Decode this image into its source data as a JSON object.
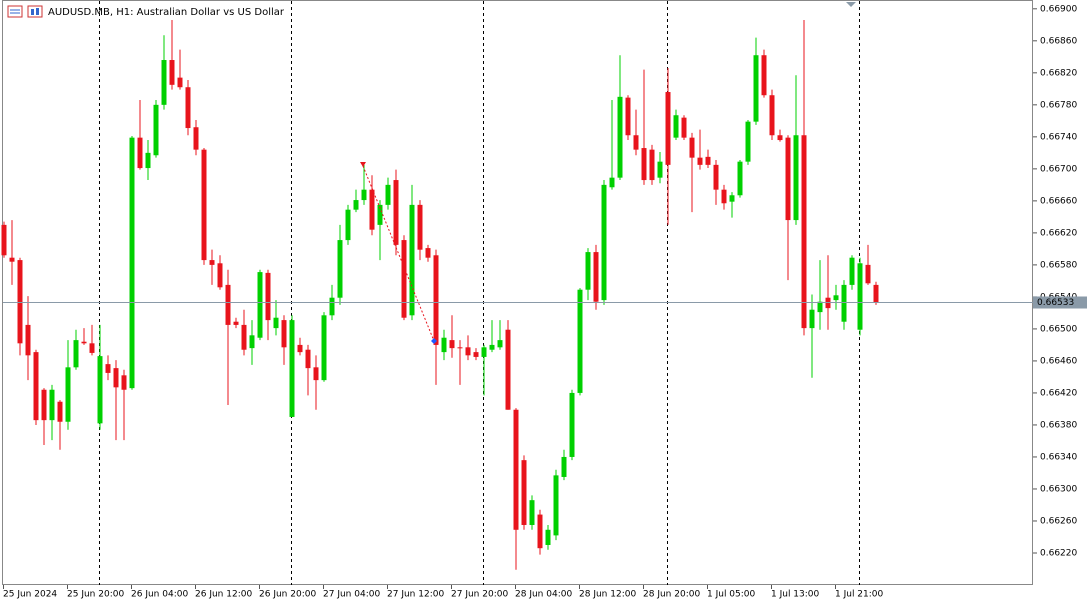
{
  "chart_data": {
    "type": "candlestick",
    "title": "AUDUSD.MB, H1:  Australian Dollar vs US Dollar",
    "bull_color": "#00d000",
    "bear_color": "#e8141c",
    "categories": [
      "25 Jun 2024",
      null,
      null,
      null,
      null,
      null,
      null,
      null,
      "25 Jun 20:00",
      null,
      null,
      null,
      null,
      null,
      null,
      null,
      "26 Jun 04:00",
      null,
      null,
      null,
      null,
      null,
      null,
      null,
      "26 Jun 12:00",
      null,
      null,
      null,
      null,
      null,
      null,
      null,
      "26 Jun 20:00",
      null,
      null,
      null,
      null,
      null,
      null,
      null,
      "27 Jun 04:00",
      null,
      null,
      null,
      null,
      null,
      null,
      null,
      "27 Jun 12:00",
      null,
      null,
      null,
      null,
      null,
      null,
      null,
      "27 Jun 20:00",
      null,
      null,
      null,
      null,
      null,
      null,
      null,
      "28 Jun 04:00",
      null,
      null,
      null,
      null,
      null,
      null,
      null,
      "28 Jun 12:00",
      null,
      null,
      null,
      null,
      null,
      null,
      null,
      "28 Jun 20:00",
      null,
      null,
      null,
      null,
      null,
      null,
      null,
      "1 Jul 05:00",
      null,
      null,
      null,
      null,
      null,
      null,
      null,
      "1 Jul 13:00",
      null,
      null,
      null,
      null,
      null,
      null,
      null,
      "1 Jul 21:00",
      null,
      null,
      null,
      null,
      null
    ],
    "open": [
      0.6663,
      0.66589,
      0.66586,
      0.66505,
      0.66471,
      0.66424,
      0.66386,
      0.66409,
      0.66384,
      0.66452,
      0.66484,
      0.66482,
      0.66382,
      0.66456,
      0.66451,
      0.66442,
      0.66426,
      0.66739,
      0.66701,
      0.66717,
      0.6678,
      0.66836,
      0.66814,
      0.66802,
      0.66752,
      0.66724,
      0.66586,
      0.66582,
      0.66555,
      0.66509,
      0.66505,
      0.66476,
      0.66489,
      0.6657,
      0.66501,
      0.66511,
      0.6639,
      0.6648,
      0.66474,
      0.66452,
      0.66436,
      0.66517,
      0.66539,
      0.66611,
      0.66649,
      0.66661,
      0.66674,
      0.6663,
      0.66655,
      0.66686,
      0.66611,
      0.66517,
      0.66655,
      0.66601,
      0.66592,
      0.66471,
      0.66486,
      0.66477,
      0.66477,
      0.66471,
      0.66465,
      0.66474,
      0.66477,
      0.66499,
      0.66399,
      0.66336,
      0.66255,
      0.66268,
      0.6623,
      0.66242,
      0.66315,
      0.6634,
      0.6642,
      0.66549,
      0.66596,
      0.66536,
      0.66677,
      0.66689,
      0.66789,
      0.66742,
      0.66726,
      0.66724,
      0.66689,
      0.66796,
      0.66739,
      0.66764,
      0.66739,
      0.66714,
      0.66715,
      0.66705,
      0.66674,
      0.66659,
      0.66667,
      0.66709,
      0.66759,
      0.66842,
      0.66792,
      0.66742,
      0.66739,
      0.66636,
      0.66742,
      0.66501,
      0.66521,
      0.66539,
      0.66536,
      0.66509,
      0.66555,
      0.66499,
      0.6658,
      0.66555
    ],
    "high": [
      0.66634,
      0.66636,
      0.66589,
      0.66541,
      0.66474,
      0.66426,
      0.6643,
      0.66411,
      0.66486,
      0.66499,
      0.66501,
      0.66505,
      0.66505,
      0.66467,
      0.66461,
      0.66449,
      0.66741,
      0.66786,
      0.66736,
      0.66786,
      0.66867,
      0.66886,
      0.66849,
      0.66811,
      0.66761,
      0.66726,
      0.66599,
      0.66592,
      0.66574,
      0.66514,
      0.66524,
      0.66511,
      0.66574,
      0.66574,
      0.66536,
      0.66517,
      0.66517,
      0.66489,
      0.6648,
      0.66467,
      0.66521,
      0.66555,
      0.6663,
      0.66655,
      0.66674,
      0.66705,
      0.66692,
      0.66661,
      0.66689,
      0.66699,
      0.66617,
      0.6668,
      0.66661,
      0.66605,
      0.66599,
      0.66499,
      0.66517,
      0.66486,
      0.66492,
      0.66476,
      0.6648,
      0.66511,
      0.66511,
      0.66511,
      0.66401,
      0.66342,
      0.66292,
      0.66274,
      0.66255,
      0.66324,
      0.66349,
      0.66424,
      0.66551,
      0.66601,
      0.66605,
      0.66686,
      0.66786,
      0.66842,
      0.66792,
      0.66774,
      0.66824,
      0.6673,
      0.66721,
      0.66826,
      0.66774,
      0.66767,
      0.66745,
      0.66749,
      0.66724,
      0.66711,
      0.6668,
      0.66671,
      0.66711,
      0.66761,
      0.66864,
      0.66849,
      0.66799,
      0.66749,
      0.66742,
      0.66817,
      0.66886,
      0.66543,
      0.66586,
      0.66592,
      0.66555,
      0.66561,
      0.66592,
      0.66589,
      0.66605,
      0.66559
    ],
    "low": [
      0.66589,
      0.66555,
      0.66467,
      0.66436,
      0.6638,
      0.66355,
      0.66361,
      0.66349,
      0.66374,
      0.66449,
      0.6648,
      0.66467,
      0.66374,
      0.66436,
      0.66361,
      0.66361,
      0.66424,
      0.66699,
      0.66686,
      0.66714,
      0.66774,
      0.66799,
      0.66799,
      0.66742,
      0.66717,
      0.6658,
      0.66555,
      0.66549,
      0.66405,
      0.66501,
      0.66467,
      0.66455,
      0.66486,
      0.66486,
      0.66492,
      0.66455,
      0.6639,
      0.66467,
      0.66417,
      0.66399,
      0.66434,
      0.66511,
      0.6653,
      0.66605,
      0.66646,
      0.66655,
      0.66617,
      0.66586,
      0.66649,
      0.66592,
      0.66511,
      0.66511,
      0.66586,
      0.66584,
      0.6643,
      0.66461,
      0.66464,
      0.6643,
      0.66461,
      0.66461,
      0.66417,
      0.66471,
      0.66474,
      0.66399,
      0.66199,
      0.66249,
      0.66249,
      0.66218,
      0.66224,
      0.66236,
      0.66311,
      0.66336,
      0.66417,
      0.66536,
      0.66524,
      0.6653,
      0.66674,
      0.66686,
      0.66736,
      0.66717,
      0.6668,
      0.6668,
      0.66682,
      0.6663,
      0.66736,
      0.66736,
      0.66646,
      0.66699,
      0.66701,
      0.66655,
      0.66649,
      0.66639,
      0.66664,
      0.66705,
      0.66755,
      0.66789,
      0.66736,
      0.66734,
      0.66561,
      0.6663,
      0.66492,
      0.66439,
      0.66499,
      0.66499,
      0.66524,
      0.66499,
      0.66549,
      0.66492,
      0.66555,
      0.6653
    ],
    "close": [
      0.66592,
      0.66584,
      0.66482,
      0.66467,
      0.66386,
      0.66386,
      0.66424,
      0.66384,
      0.66452,
      0.66486,
      0.66482,
      0.6647,
      0.66466,
      0.66445,
      0.66427,
      0.66424,
      0.66739,
      0.66701,
      0.6672,
      0.6678,
      0.66836,
      0.66805,
      0.66802,
      0.66751,
      0.66724,
      0.66586,
      0.6658,
      0.66552,
      0.66505,
      0.66505,
      0.66474,
      0.66492,
      0.66571,
      0.66511,
      0.66514,
      0.66477,
      0.66511,
      0.66471,
      0.66451,
      0.66436,
      0.66517,
      0.66539,
      0.66611,
      0.66649,
      0.66661,
      0.66674,
      0.66624,
      0.66655,
      0.6668,
      0.66605,
      0.66514,
      0.66655,
      0.66599,
      0.66589,
      0.6648,
      0.66489,
      0.66476,
      0.66476,
      0.66467,
      0.66465,
      0.66477,
      0.6648,
      0.66486,
      0.66399,
      0.66249,
      0.66255,
      0.66286,
      0.66226,
      0.66249,
      0.66317,
      0.6634,
      0.6642,
      0.66549,
      0.66596,
      0.66534,
      0.6668,
      0.66689,
      0.6679,
      0.66742,
      0.66724,
      0.66686,
      0.66686,
      0.66709,
      0.66705,
      0.66767,
      0.66739,
      0.66714,
      0.66705,
      0.66705,
      0.66674,
      0.66657,
      0.66667,
      0.66709,
      0.66759,
      0.66842,
      0.66792,
      0.66742,
      0.66736,
      0.66636,
      0.66742,
      0.66501,
      0.66524,
      0.66534,
      0.66526,
      0.66542,
      0.66555,
      0.66589,
      0.66582,
      0.66557,
      0.66533
    ],
    "ylim": [
      0.6618,
      0.66911
    ],
    "yticks": [
      {
        "value": 0.669,
        "label": "0.66900"
      },
      {
        "value": 0.6686,
        "label": "0.66860"
      },
      {
        "value": 0.6682,
        "label": "0.66820"
      },
      {
        "value": 0.6678,
        "label": "0.66780"
      },
      {
        "value": 0.6674,
        "label": "0.66740"
      },
      {
        "value": 0.667,
        "label": "0.66700"
      },
      {
        "value": 0.6666,
        "label": "0.66660"
      },
      {
        "value": 0.6662,
        "label": "0.66620"
      },
      {
        "value": 0.6658,
        "label": "0.66580"
      },
      {
        "value": 0.6654,
        "label": "0.66540"
      },
      {
        "value": 0.665,
        "label": "0.66500"
      },
      {
        "value": 0.6646,
        "label": "0.66460"
      },
      {
        "value": 0.6642,
        "label": "0.66420"
      },
      {
        "value": 0.6638,
        "label": "0.66380"
      },
      {
        "value": 0.6634,
        "label": "0.66340"
      },
      {
        "value": 0.663,
        "label": "0.66300"
      },
      {
        "value": 0.6626,
        "label": "0.66260"
      },
      {
        "value": 0.6622,
        "label": "0.66220"
      }
    ]
  }
}
